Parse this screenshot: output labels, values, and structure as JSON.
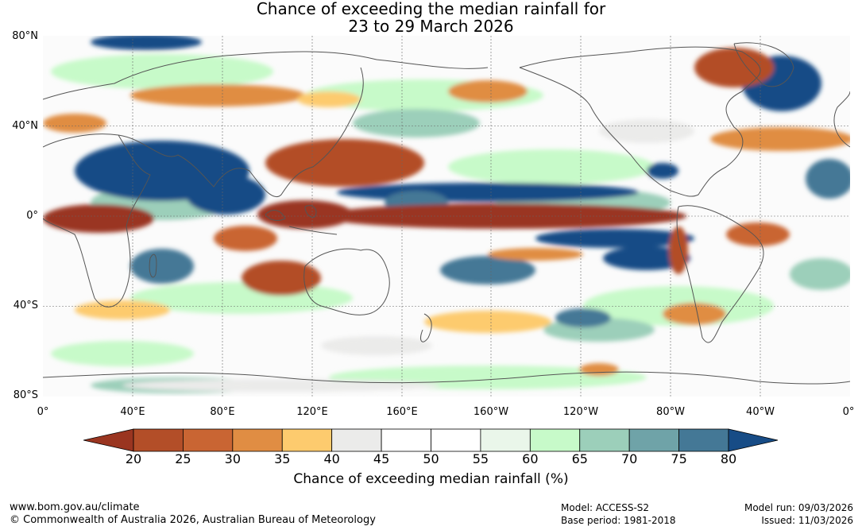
{
  "title": {
    "line1": "Chance of exceeding the median rainfall for",
    "line2": "23 to 29 March 2026"
  },
  "lat_labels": [
    "80°N",
    "40°N",
    "0°",
    "40°S",
    "80°S"
  ],
  "lon_labels": [
    "0°",
    "40°E",
    "80°E",
    "120°E",
    "160°E",
    "160°W",
    "120°W",
    "80°W",
    "40°W",
    "0°"
  ],
  "colorbar": {
    "ticks": [
      "20",
      "25",
      "30",
      "35",
      "40",
      "45",
      "50",
      "55",
      "60",
      "65",
      "70",
      "75",
      "80"
    ],
    "colors": [
      "#9a3520",
      "#b34e28",
      "#c96533",
      "#e08d43",
      "#fdcb6e",
      "#ebebea",
      "#ffffff",
      "#ffffff",
      "#eaf6ea",
      "#c7fac9",
      "#9ccfba",
      "#6fa3a8",
      "#447896",
      "#174c86"
    ],
    "label": "Chance of exceeding median rainfall (%)"
  },
  "footer": {
    "url": "www.bom.gov.au/climate",
    "copyright": "© Commonwealth of Australia 2026, Australian Bureau of Meteorology",
    "model": "Model: ACCESS-S2",
    "base_period": "Base period: 1981-2018",
    "model_run": "Model run: 09/03/2026",
    "issued": "Issued: 11/03/2026"
  }
}
